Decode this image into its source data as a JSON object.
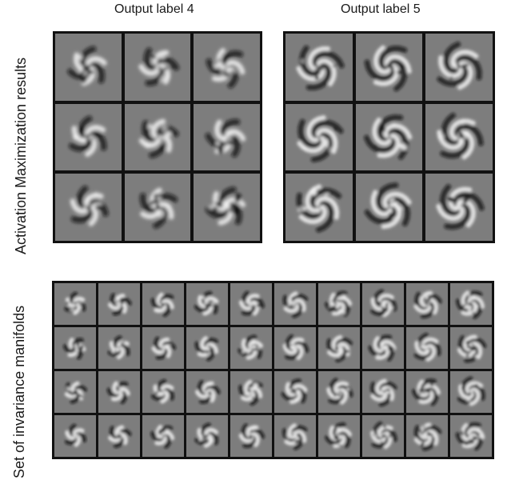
{
  "panels": {
    "label4": {
      "title": "Output label 4"
    },
    "label5": {
      "title": "Output label 5"
    }
  },
  "side_labels": {
    "activation": "Activation Maximization results",
    "invariance": "Set of invariance manifolds"
  },
  "grids": {
    "label4": {
      "rows": 3,
      "cols": 3,
      "arms": 3
    },
    "label5": {
      "rows": 3,
      "cols": 3,
      "arms": 3
    },
    "manifolds": {
      "rows": 4,
      "cols": 10
    }
  },
  "colors": {
    "tile_bg": "#7d7d7d",
    "border": "#111111",
    "light": "#f2f2f2",
    "dark": "#0c0c0c"
  }
}
